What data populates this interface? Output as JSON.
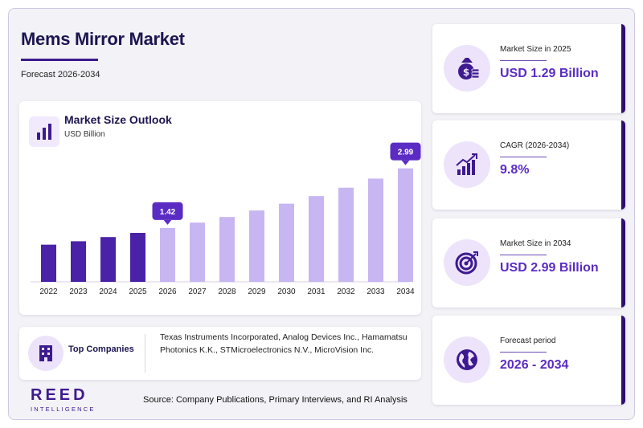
{
  "header": {
    "title": "Mems Mirror Market",
    "subtitle": "Forecast 2026-2034"
  },
  "chart_card": {
    "title": "Market Size Outlook",
    "unit": "USD Billion"
  },
  "chart_data": {
    "type": "bar",
    "title": "Market Size Outlook",
    "ylabel": "USD Billion",
    "categories": [
      "2022",
      "2023",
      "2024",
      "2025",
      "2026",
      "2027",
      "2028",
      "2029",
      "2030",
      "2031",
      "2032",
      "2033",
      "2034"
    ],
    "values": [
      0.98,
      1.07,
      1.18,
      1.29,
      1.42,
      1.56,
      1.71,
      1.88,
      2.06,
      2.26,
      2.48,
      2.72,
      2.99
    ],
    "historical_count": 4,
    "callouts": [
      {
        "category": "2026",
        "label": "1.42"
      },
      {
        "category": "2034",
        "label": "2.99"
      }
    ],
    "ylim": [
      0,
      3.3
    ],
    "colors": {
      "historical": "#4a22a8",
      "forecast": "#c7b6f2",
      "callout": "#5b2cc4"
    }
  },
  "companies": {
    "label": "Top Companies",
    "text": "Texas Instruments Incorporated, Analog Devices Inc., Hamamatsu Photonics K.K., STMicroelectronics N.V., MicroVision Inc."
  },
  "logo": {
    "main": "REED",
    "sub": "INTELLIGENCE"
  },
  "source": "Source: Company Publications, Primary Interviews, and RI Analysis",
  "stats": [
    {
      "label": "Market Size in 2025",
      "value": "USD 1.29 Billion",
      "icon": "money-bag-icon"
    },
    {
      "label": "CAGR (2026-2034)",
      "value": "9.8%",
      "icon": "growth-chart-icon"
    },
    {
      "label": "Market Size in 2034",
      "value": "USD 2.99 Billion",
      "icon": "target-icon"
    },
    {
      "label": "Forecast period",
      "value": "2026 - 2034",
      "icon": "globe-icon"
    }
  ]
}
